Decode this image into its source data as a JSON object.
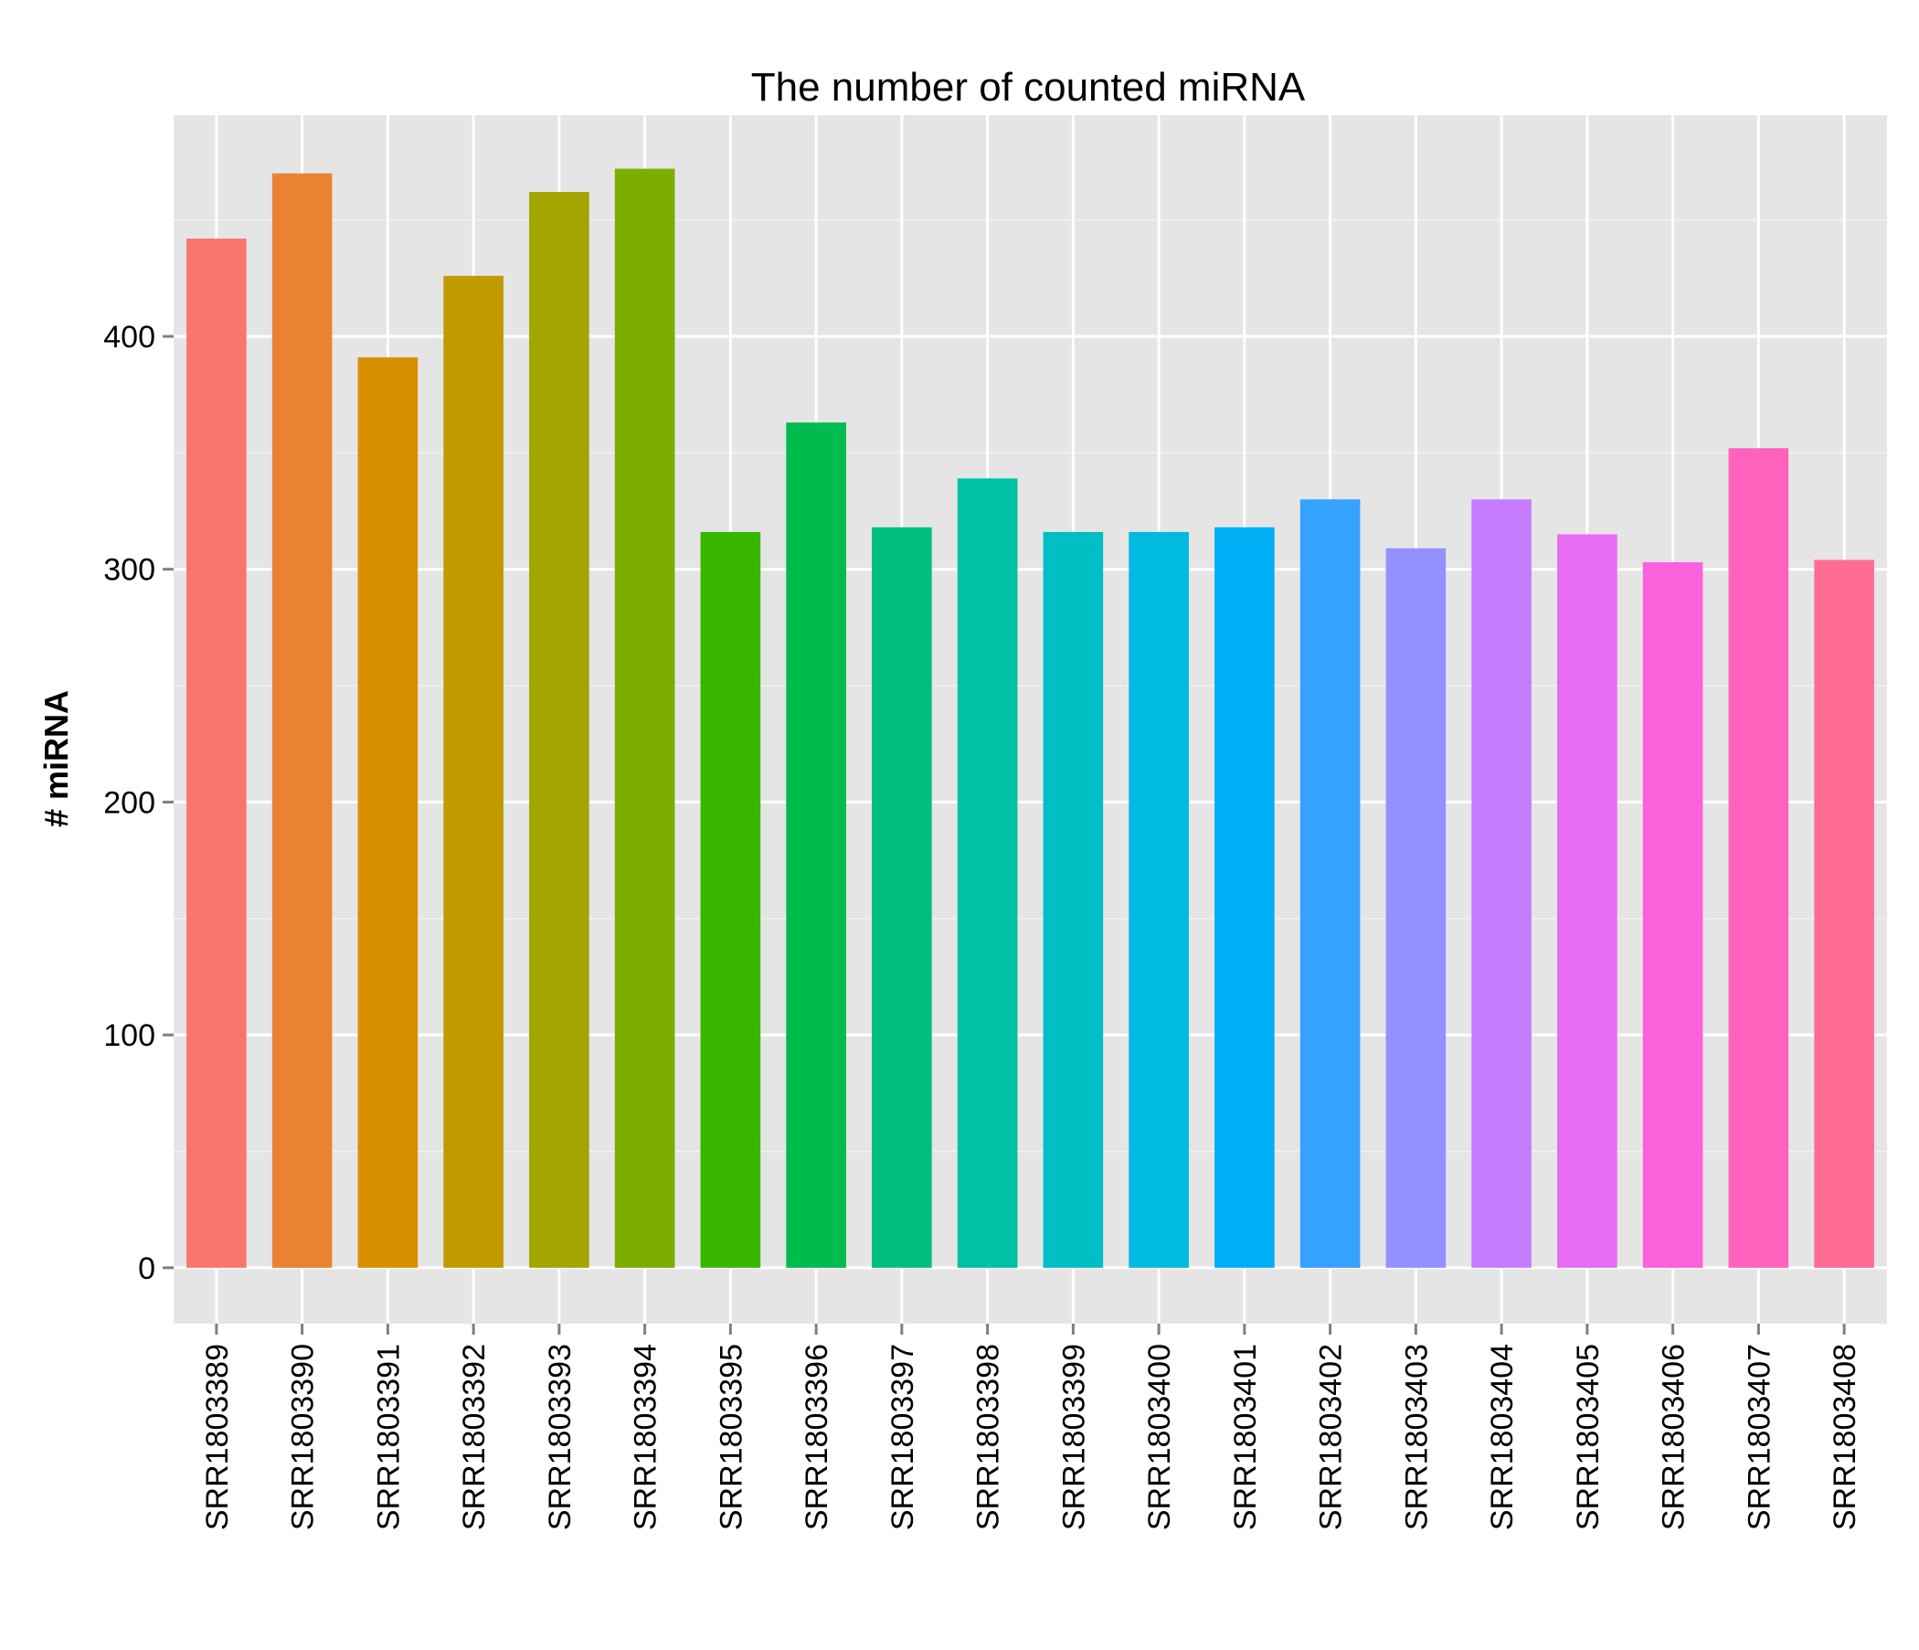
{
  "chart_data": {
    "type": "bar",
    "title": "The number of counted miRNA",
    "xlabel": "",
    "ylabel": "# miRNA",
    "ylim": [
      -24,
      495
    ],
    "yticks": [
      0,
      100,
      200,
      300,
      400
    ],
    "grid": true,
    "legend": "none",
    "categories": [
      "SRR1803389",
      "SRR1803390",
      "SRR1803391",
      "SRR1803392",
      "SRR1803393",
      "SRR1803394",
      "SRR1803395",
      "SRR1803396",
      "SRR1803397",
      "SRR1803398",
      "SRR1803399",
      "SRR1803400",
      "SRR1803401",
      "SRR1803402",
      "SRR1803403",
      "SRR1803404",
      "SRR1803405",
      "SRR1803406",
      "SRR1803407",
      "SRR1803408"
    ],
    "values": [
      442,
      470,
      391,
      426,
      462,
      472,
      316,
      363,
      318,
      339,
      316,
      316,
      318,
      330,
      309,
      330,
      315,
      303,
      352,
      304
    ],
    "colors": [
      "#F8766D",
      "#EA8331",
      "#D89000",
      "#C09B00",
      "#A3A500",
      "#7CAE00",
      "#39B600",
      "#00BB4E",
      "#00BF7D",
      "#00C1A3",
      "#00BFC4",
      "#00BAE0",
      "#00B0F6",
      "#35A2FF",
      "#9590FF",
      "#C77CFF",
      "#E76BF3",
      "#FA62DB",
      "#FF62BC",
      "#FF6C91"
    ],
    "panel_color": "#E5E5E5",
    "grid_color": "#FFFFFF",
    "tick_color": "#7F7F7F"
  }
}
